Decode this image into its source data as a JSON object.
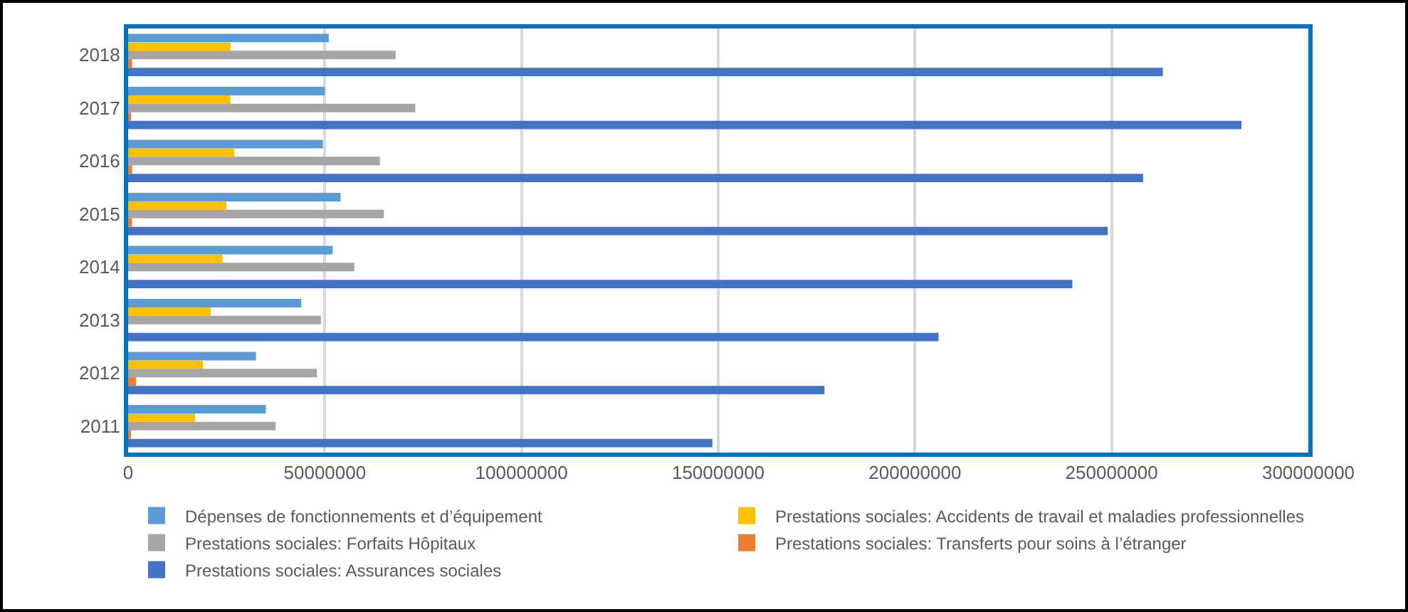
{
  "chart_data": {
    "type": "bar",
    "orientation": "horizontal",
    "categories": [
      "2018",
      "2017",
      "2016",
      "2015",
      "2014",
      "2013",
      "2012",
      "2011"
    ],
    "series": [
      {
        "name": "Dépenses de fonctionnements et d’équipement",
        "color": "#5b9bd5",
        "values": [
          51000000,
          50000000,
          49500000,
          54000000,
          52000000,
          44000000,
          32500000,
          35000000
        ]
      },
      {
        "name": "Prestations sociales: Accidents de travail et maladies professionnelles",
        "color": "#ffc000",
        "values": [
          26000000,
          26000000,
          27000000,
          25000000,
          24000000,
          21000000,
          19000000,
          17000000
        ]
      },
      {
        "name": "Prestations sociales: Forfaits Hôpitaux",
        "color": "#a5a5a5",
        "values": [
          68000000,
          73000000,
          64000000,
          65000000,
          57500000,
          49000000,
          48000000,
          37500000
        ]
      },
      {
        "name": "Prestations sociales: Transferts pour soins à l’étranger",
        "color": "#ed7d31",
        "values": [
          1000000,
          500000,
          1000000,
          1000000,
          0,
          0,
          2000000,
          500000
        ]
      },
      {
        "name": "Prestations sociales: Assurances sociales",
        "color": "#4472c4",
        "values": [
          263000000,
          283000000,
          258000000,
          249000000,
          240000000,
          206000000,
          177000000,
          148500000
        ]
      }
    ],
    "xlim": [
      0,
      300000000
    ],
    "xticks": [
      0,
      50000000,
      100000000,
      150000000,
      200000000,
      250000000,
      300000000
    ],
    "grid": "x",
    "legend": "bottom"
  }
}
